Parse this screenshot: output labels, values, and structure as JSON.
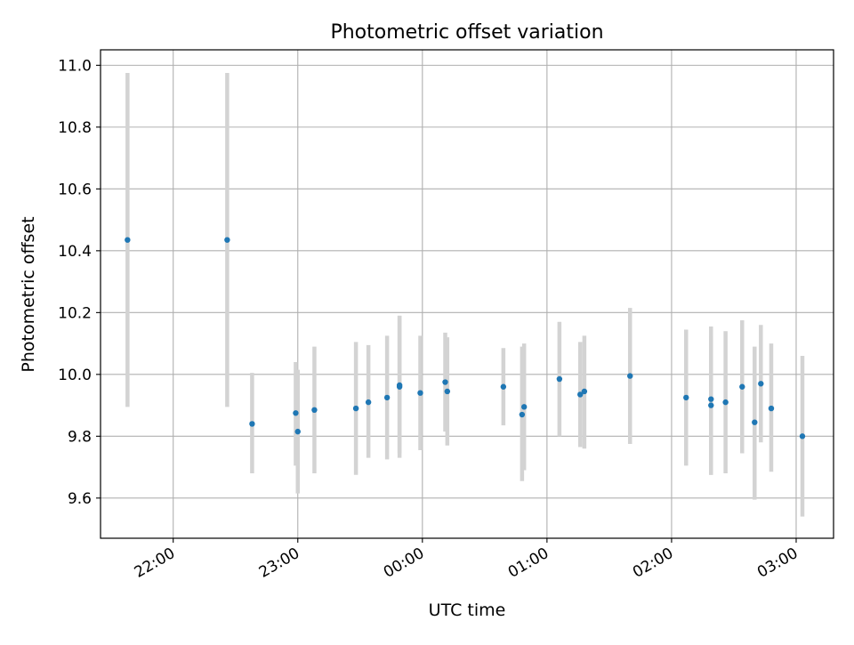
{
  "chart_data": {
    "type": "scatter",
    "title": "Photometric offset variation",
    "xlabel": "UTC time",
    "ylabel": "Photometric offset",
    "x_ticks": [
      "22:00",
      "23:00",
      "00:00",
      "01:00",
      "02:00",
      "03:00"
    ],
    "y_ticks": [
      "9.6",
      "9.8",
      "10.0",
      "10.2",
      "10.4",
      "10.6",
      "10.8",
      "11.0"
    ],
    "xlim": [
      "21:25",
      "03:18"
    ],
    "ylim": [
      9.47,
      11.05
    ],
    "grid": true,
    "series": [
      {
        "marker_color": "#1f77b4",
        "error_color": "#d3d3d3",
        "points": [
          {
            "x": "21:38",
            "y": 10.435,
            "ylo": 9.895,
            "yhi": 10.975
          },
          {
            "x": "22:26",
            "y": 10.435,
            "ylo": 9.895,
            "yhi": 10.975
          },
          {
            "x": "22:38",
            "y": 9.84,
            "ylo": 9.68,
            "yhi": 10.005
          },
          {
            "x": "22:59",
            "y": 9.875,
            "ylo": 9.705,
            "yhi": 10.04
          },
          {
            "x": "23:00",
            "y": 9.815,
            "ylo": 9.615,
            "yhi": 10.015
          },
          {
            "x": "23:08",
            "y": 9.885,
            "ylo": 9.68,
            "yhi": 10.09
          },
          {
            "x": "23:28",
            "y": 9.89,
            "ylo": 9.675,
            "yhi": 10.105
          },
          {
            "x": "23:34",
            "y": 9.91,
            "ylo": 9.73,
            "yhi": 10.095
          },
          {
            "x": "23:43",
            "y": 9.925,
            "ylo": 9.725,
            "yhi": 10.125
          },
          {
            "x": "23:49",
            "y": 9.96,
            "ylo": 9.73,
            "yhi": 10.19
          },
          {
            "x": "23:49",
            "y": 9.965,
            "ylo": 9.745,
            "yhi": 10.19
          },
          {
            "x": "23:59",
            "y": 9.94,
            "ylo": 9.755,
            "yhi": 10.125
          },
          {
            "x": "00:11",
            "y": 9.975,
            "ylo": 9.815,
            "yhi": 10.135
          },
          {
            "x": "00:12",
            "y": 9.945,
            "ylo": 9.77,
            "yhi": 10.12
          },
          {
            "x": "00:39",
            "y": 9.96,
            "ylo": 9.835,
            "yhi": 10.085
          },
          {
            "x": "00:48",
            "y": 9.87,
            "ylo": 9.655,
            "yhi": 10.09
          },
          {
            "x": "00:49",
            "y": 9.895,
            "ylo": 9.69,
            "yhi": 10.1
          },
          {
            "x": "01:06",
            "y": 9.985,
            "ylo": 9.8,
            "yhi": 10.17
          },
          {
            "x": "01:16",
            "y": 9.935,
            "ylo": 9.765,
            "yhi": 10.105
          },
          {
            "x": "01:18",
            "y": 9.945,
            "ylo": 9.76,
            "yhi": 10.125
          },
          {
            "x": "01:40",
            "y": 9.995,
            "ylo": 9.775,
            "yhi": 10.215
          },
          {
            "x": "02:07",
            "y": 9.925,
            "ylo": 9.705,
            "yhi": 10.145
          },
          {
            "x": "02:19",
            "y": 9.92,
            "ylo": 9.675,
            "yhi": 10.155
          },
          {
            "x": "02:19",
            "y": 9.9,
            "ylo": 9.675,
            "yhi": 10.125
          },
          {
            "x": "02:26",
            "y": 9.91,
            "ylo": 9.68,
            "yhi": 10.14
          },
          {
            "x": "02:34",
            "y": 9.96,
            "ylo": 9.745,
            "yhi": 10.175
          },
          {
            "x": "02:40",
            "y": 9.845,
            "ylo": 9.595,
            "yhi": 10.09
          },
          {
            "x": "02:43",
            "y": 9.97,
            "ylo": 9.78,
            "yhi": 10.16
          },
          {
            "x": "02:48",
            "y": 9.89,
            "ylo": 9.685,
            "yhi": 10.1
          },
          {
            "x": "03:03",
            "y": 9.8,
            "ylo": 9.54,
            "yhi": 10.06
          }
        ]
      }
    ]
  }
}
